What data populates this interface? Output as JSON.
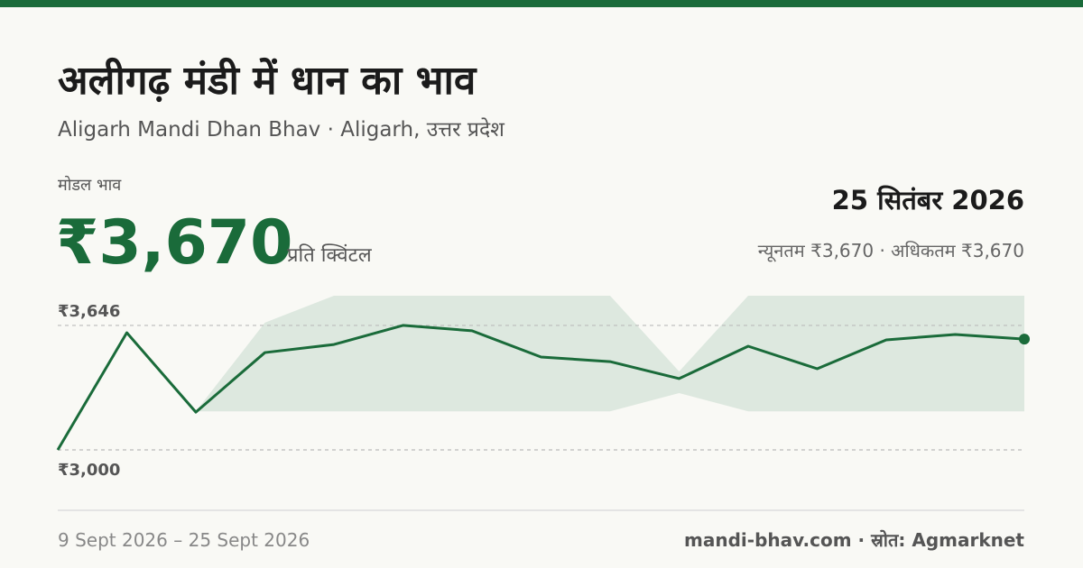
{
  "header": {
    "title": "अलीगढ़ मंडी में धान का भाव",
    "subtitle": "Aligarh Mandi Dhan Bhav · Aligarh, उत्तर प्रदेश"
  },
  "price": {
    "label": "मोडल भाव",
    "value": "₹3,670",
    "unit": "प्रति क्विंटल",
    "date": "25 सितंबर 2026",
    "range": "न्यूनतम ₹3,670 · अधिकतम ₹3,670"
  },
  "footer": {
    "period": "9 Sept 2026 – 25 Sept 2026",
    "source": "mandi-bhav.com · स्रोत: Agmarknet"
  },
  "chart_data": {
    "type": "line",
    "categories": [
      null,
      null,
      null,
      null,
      null,
      null,
      null,
      null,
      null,
      null,
      null,
      null,
      null,
      null,
      null
    ],
    "series": [
      {
        "color": "#1a6b3a",
        "values": [
          3000,
          3608,
          3196,
          3505,
          3547,
          3646,
          3618,
          3482,
          3458,
          3370,
          3538,
          3421,
          3571,
          3599,
          3575
        ]
      }
    ],
    "range": {
      "color": "#dde8df",
      "low": [
        3000,
        3608,
        3200,
        3200,
        3200,
        3200,
        3200,
        3200,
        3200,
        3295,
        3200,
        3200,
        3200,
        3200,
        3200
      ],
      "high": [
        3000,
        3608,
        3200,
        3660,
        3800,
        3800,
        3800,
        3800,
        3800,
        3407,
        3800,
        3800,
        3800,
        3800,
        3800
      ]
    },
    "ylim": [
      3000,
      3800
    ],
    "yticks": [
      {
        "value": 3000,
        "label": "₹3,000"
      },
      {
        "value": 3646,
        "label": "₹3,646"
      }
    ],
    "grid": true
  }
}
